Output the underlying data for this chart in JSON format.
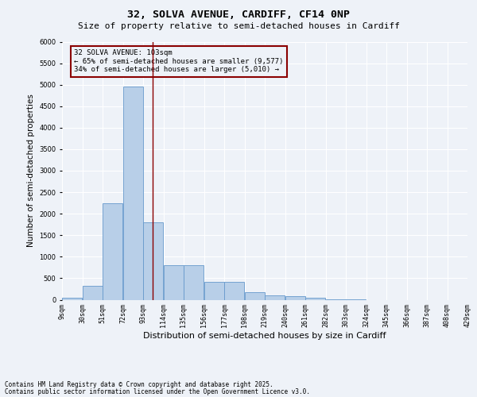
{
  "title_line1": "32, SOLVA AVENUE, CARDIFF, CF14 0NP",
  "title_line2": "Size of property relative to semi-detached houses in Cardiff",
  "xlabel": "Distribution of semi-detached houses by size in Cardiff",
  "ylabel": "Number of semi-detached properties",
  "footnote1": "Contains HM Land Registry data © Crown copyright and database right 2025.",
  "footnote2": "Contains public sector information licensed under the Open Government Licence v3.0.",
  "bin_labels": [
    "9sqm",
    "30sqm",
    "51sqm",
    "72sqm",
    "93sqm",
    "114sqm",
    "135sqm",
    "156sqm",
    "177sqm",
    "198sqm",
    "219sqm",
    "240sqm",
    "261sqm",
    "282sqm",
    "303sqm",
    "324sqm",
    "345sqm",
    "366sqm",
    "387sqm",
    "408sqm",
    "429sqm"
  ],
  "bar_heights": [
    50,
    320,
    2250,
    4950,
    1800,
    800,
    800,
    420,
    420,
    170,
    100,
    80,
    50,
    15,
    10,
    0,
    0,
    0,
    0,
    0
  ],
  "bin_edges": [
    9,
    30,
    51,
    72,
    93,
    114,
    135,
    156,
    177,
    198,
    219,
    240,
    261,
    282,
    303,
    324,
    345,
    366,
    387,
    408,
    429
  ],
  "bar_facecolor": "#b8cfe8",
  "bar_edgecolor": "#6699cc",
  "vline_x": 103,
  "vline_color": "#8b0000",
  "ylim": [
    0,
    6000
  ],
  "yticks": [
    0,
    500,
    1000,
    1500,
    2000,
    2500,
    3000,
    3500,
    4000,
    4500,
    5000,
    5500,
    6000
  ],
  "annotation_title": "32 SOLVA AVENUE: 103sqm",
  "annotation_line1": "← 65% of semi-detached houses are smaller (9,577)",
  "annotation_line2": "34% of semi-detached houses are larger (5,010) →",
  "annotation_box_color": "#8b0000",
  "bg_color": "#eef2f8",
  "grid_color": "#ffffff",
  "title_fontsize": 9.5,
  "subtitle_fontsize": 8,
  "ylabel_fontsize": 7.5,
  "xlabel_fontsize": 8,
  "tick_fontsize": 6,
  "ann_fontsize": 6.5,
  "footnote_fontsize": 5.5
}
